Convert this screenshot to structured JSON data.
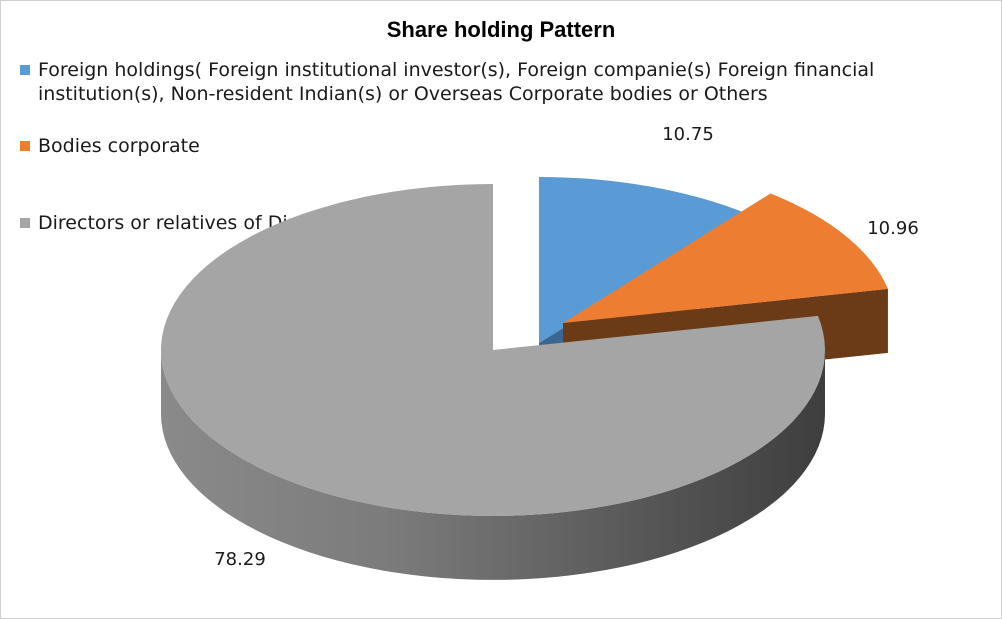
{
  "chart_data": {
    "type": "pie",
    "title": "Share holding  Pattern",
    "categories": [
      "Foreign holdings( Foreign institutional investor(s), Foreign companie(s) Foreign financial institution(s), Non-resident Indian(s) or Overseas Corporate bodies or Others",
      "Bodies corporate",
      "Directors or relatives of Directors"
    ],
    "values": [
      10.75,
      10.96,
      78.29
    ],
    "data_labels": [
      "10.75",
      "10.96",
      "78.29"
    ],
    "colors": [
      "#5b9bd5",
      "#ed7d31",
      "#a5a5a5"
    ],
    "legend_position": "top-left",
    "style": "3d-exploded"
  }
}
